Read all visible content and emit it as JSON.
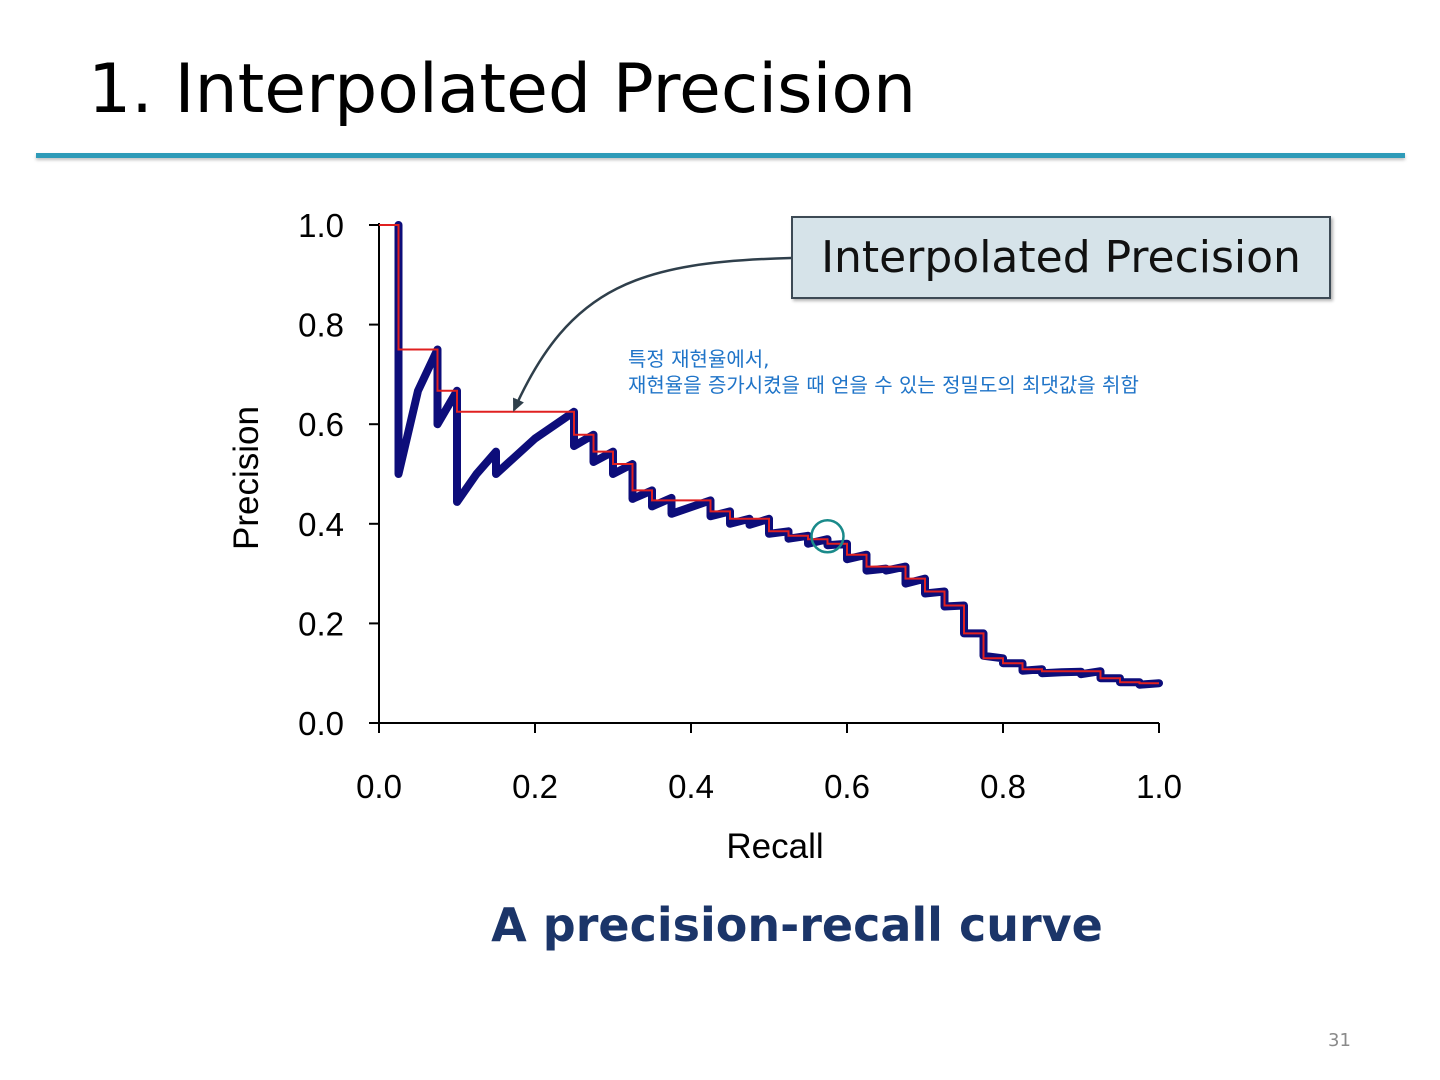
{
  "slide": {
    "title": "1. Interpolated Precision",
    "caption": "A precision-recall curve",
    "page_number": "31"
  },
  "callout": {
    "label": "Interpolated Precision"
  },
  "note": {
    "line1": "특정 재현율에서,",
    "line2": "재현율을 증가시켰을 때 얻을 수 있는 정밀도의 최댓값을 취함"
  },
  "colors": {
    "title_rule": "#2e9bb8",
    "pr_curve": "#0d0d7a",
    "interpolated": "#e02020",
    "callout_fill": "#d6e3e9",
    "note_text": "#1f74c8",
    "caption": "#1b3569",
    "highlight_circle": "#1a8a8a"
  },
  "chart_data": {
    "type": "line",
    "xlabel": "Recall",
    "ylabel": "Precision",
    "xlim": [
      0,
      1
    ],
    "ylim": [
      0,
      1
    ],
    "x_ticks": [
      "0.0",
      "0.2",
      "0.4",
      "0.6",
      "0.8",
      "1.0"
    ],
    "y_ticks": [
      "0.0",
      "0.2",
      "0.4",
      "0.6",
      "0.8",
      "1.0"
    ],
    "grid": false,
    "highlight_point": [
      0.575,
      0.375
    ],
    "series": [
      {
        "name": "Precision",
        "points": [
          [
            0.025,
            1.0
          ],
          [
            0.025,
            0.5
          ],
          [
            0.05,
            0.667
          ],
          [
            0.075,
            0.75
          ],
          [
            0.075,
            0.6
          ],
          [
            0.1,
            0.667
          ],
          [
            0.1,
            0.444
          ],
          [
            0.125,
            0.5
          ],
          [
            0.15,
            0.545
          ],
          [
            0.15,
            0.5
          ],
          [
            0.2,
            0.571
          ],
          [
            0.25,
            0.625
          ],
          [
            0.25,
            0.556
          ],
          [
            0.275,
            0.579
          ],
          [
            0.275,
            0.524
          ],
          [
            0.3,
            0.545
          ],
          [
            0.3,
            0.5
          ],
          [
            0.325,
            0.52
          ],
          [
            0.325,
            0.45
          ],
          [
            0.35,
            0.467
          ],
          [
            0.35,
            0.435
          ],
          [
            0.375,
            0.452
          ],
          [
            0.375,
            0.42
          ],
          [
            0.425,
            0.447
          ],
          [
            0.425,
            0.415
          ],
          [
            0.45,
            0.425
          ],
          [
            0.45,
            0.4
          ],
          [
            0.475,
            0.41
          ],
          [
            0.475,
            0.398
          ],
          [
            0.5,
            0.41
          ],
          [
            0.5,
            0.38
          ],
          [
            0.525,
            0.385
          ],
          [
            0.525,
            0.37
          ],
          [
            0.55,
            0.376
          ],
          [
            0.55,
            0.36
          ],
          [
            0.575,
            0.369
          ],
          [
            0.575,
            0.357
          ],
          [
            0.6,
            0.36
          ],
          [
            0.6,
            0.329
          ],
          [
            0.625,
            0.338
          ],
          [
            0.625,
            0.306
          ],
          [
            0.65,
            0.31
          ],
          [
            0.65,
            0.306
          ],
          [
            0.675,
            0.314
          ],
          [
            0.675,
            0.28
          ],
          [
            0.7,
            0.29
          ],
          [
            0.7,
            0.26
          ],
          [
            0.725,
            0.264
          ],
          [
            0.725,
            0.234
          ],
          [
            0.75,
            0.236
          ],
          [
            0.75,
            0.18
          ],
          [
            0.775,
            0.18
          ],
          [
            0.775,
            0.135
          ],
          [
            0.8,
            0.13
          ],
          [
            0.8,
            0.12
          ],
          [
            0.825,
            0.12
          ],
          [
            0.825,
            0.105
          ],
          [
            0.85,
            0.108
          ],
          [
            0.85,
            0.1
          ],
          [
            0.875,
            0.102
          ],
          [
            0.9,
            0.103
          ],
          [
            0.9,
            0.098
          ],
          [
            0.925,
            0.104
          ],
          [
            0.925,
            0.09
          ],
          [
            0.95,
            0.09
          ],
          [
            0.95,
            0.082
          ],
          [
            0.975,
            0.082
          ],
          [
            0.975,
            0.077
          ],
          [
            1.0,
            0.08
          ]
        ]
      },
      {
        "name": "Interpolated Precision",
        "points": [
          [
            0.0,
            1.0
          ],
          [
            0.025,
            1.0
          ],
          [
            0.025,
            0.75
          ],
          [
            0.075,
            0.75
          ],
          [
            0.075,
            0.667
          ],
          [
            0.1,
            0.667
          ],
          [
            0.1,
            0.625
          ],
          [
            0.25,
            0.625
          ],
          [
            0.25,
            0.579
          ],
          [
            0.275,
            0.579
          ],
          [
            0.275,
            0.545
          ],
          [
            0.3,
            0.545
          ],
          [
            0.3,
            0.52
          ],
          [
            0.325,
            0.52
          ],
          [
            0.325,
            0.467
          ],
          [
            0.35,
            0.467
          ],
          [
            0.35,
            0.447
          ],
          [
            0.425,
            0.447
          ],
          [
            0.425,
            0.425
          ],
          [
            0.45,
            0.425
          ],
          [
            0.45,
            0.41
          ],
          [
            0.5,
            0.41
          ],
          [
            0.5,
            0.385
          ],
          [
            0.525,
            0.385
          ],
          [
            0.525,
            0.376
          ],
          [
            0.55,
            0.376
          ],
          [
            0.55,
            0.369
          ],
          [
            0.575,
            0.369
          ],
          [
            0.575,
            0.36
          ],
          [
            0.6,
            0.36
          ],
          [
            0.6,
            0.338
          ],
          [
            0.625,
            0.338
          ],
          [
            0.625,
            0.314
          ],
          [
            0.675,
            0.314
          ],
          [
            0.675,
            0.29
          ],
          [
            0.7,
            0.29
          ],
          [
            0.7,
            0.264
          ],
          [
            0.725,
            0.264
          ],
          [
            0.725,
            0.236
          ],
          [
            0.75,
            0.236
          ],
          [
            0.75,
            0.18
          ],
          [
            0.775,
            0.18
          ],
          [
            0.775,
            0.13
          ],
          [
            0.8,
            0.13
          ],
          [
            0.8,
            0.12
          ],
          [
            0.825,
            0.12
          ],
          [
            0.825,
            0.108
          ],
          [
            0.85,
            0.108
          ],
          [
            0.85,
            0.104
          ],
          [
            0.925,
            0.104
          ],
          [
            0.925,
            0.09
          ],
          [
            0.95,
            0.09
          ],
          [
            0.95,
            0.082
          ],
          [
            0.975,
            0.082
          ],
          [
            0.975,
            0.08
          ],
          [
            1.0,
            0.08
          ]
        ]
      }
    ]
  }
}
